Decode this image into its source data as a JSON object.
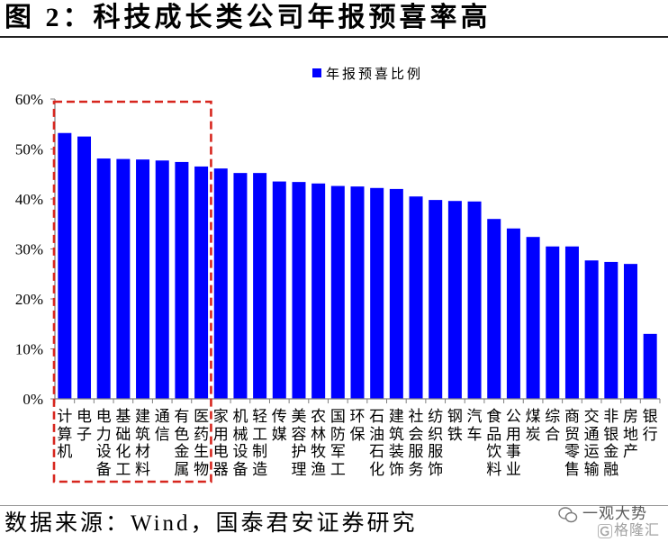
{
  "chart_data": {
    "type": "bar",
    "title": "图 2：科技成长类公司年报预喜率高",
    "categories": [
      "计算机",
      "电子",
      "电力设备",
      "基础化工",
      "建筑材料",
      "通信",
      "有色金属",
      "医药生物",
      "家用电器",
      "机械设备",
      "轻工制造",
      "传媒",
      "美容护理",
      "农林牧渔",
      "国防军工",
      "环保",
      "石油石化",
      "建筑装饰",
      "社会服务",
      "纺织服饰",
      "钢铁",
      "汽车",
      "食品饮料",
      "公用事业",
      "煤炭",
      "综合",
      "商贸零售",
      "交通运输",
      "非银金融",
      "房地产",
      "银行"
    ],
    "series": [
      {
        "name": "年报预喜比例",
        "color": "#0000FF",
        "values": [
          53.2,
          52.5,
          48.1,
          48.0,
          47.9,
          47.7,
          47.4,
          46.5,
          46.1,
          45.2,
          45.2,
          43.5,
          43.4,
          43.1,
          42.6,
          42.5,
          42.2,
          42.0,
          40.5,
          39.8,
          39.6,
          39.5,
          36.0,
          34.1,
          32.4,
          30.5,
          30.5,
          27.7,
          27.4,
          27.0,
          13.0
        ]
      }
    ],
    "ylim": [
      0,
      60
    ],
    "yticks": [
      0,
      10,
      20,
      30,
      40,
      50,
      60
    ],
    "ytick_labels": [
      "0%",
      "10%",
      "20%",
      "30%",
      "40%",
      "50%",
      "60%"
    ],
    "grid": false,
    "legend": "top-center",
    "highlight_color": "#D7261E"
  },
  "source": "数据来源：Wind，国泰君安证券研究",
  "watermark": {
    "icon": "wechat-icon",
    "account": "一观大势",
    "logo_icon": "gelonghui-logo-icon",
    "logo": "格隆汇"
  }
}
